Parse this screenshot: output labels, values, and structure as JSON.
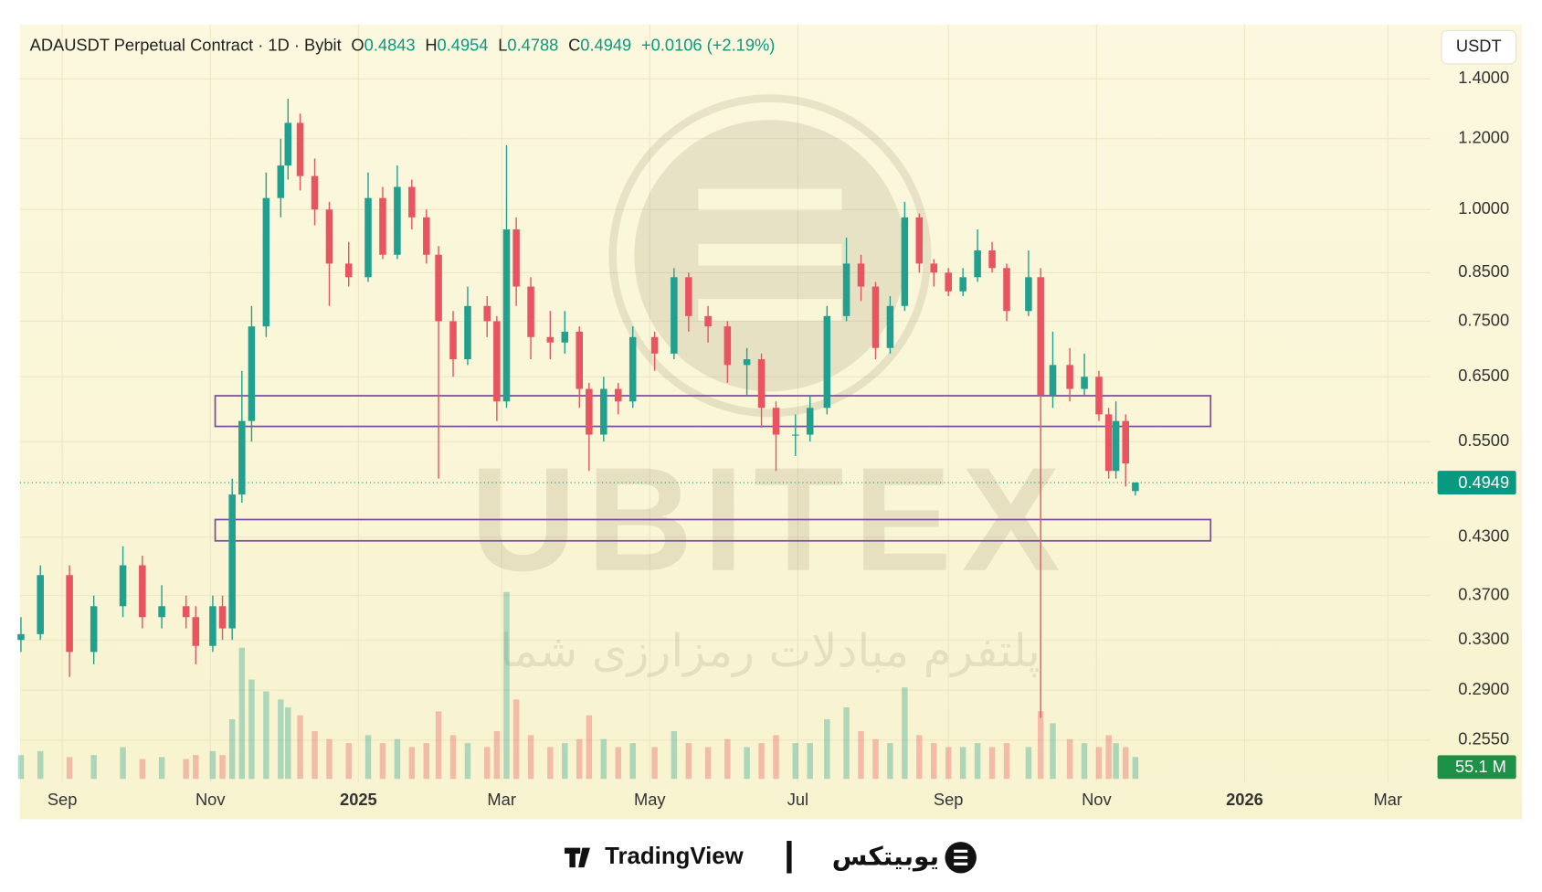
{
  "chart_data": {
    "type": "candlestick",
    "title": "ADAUSDT Perpetual Contract · 1D · Bybit",
    "ohlc_labels": [
      "O",
      "H",
      "L",
      "C"
    ],
    "change": "+0.0106 (+2.19%)",
    "currency": "USDT",
    "log": true,
    "grid": true,
    "up_color": "#22a08f",
    "down_color": "#e8545f",
    "zone_color": "#7a4ba3",
    "x": [
      -17,
      -9,
      3,
      13,
      25,
      33,
      41,
      51,
      55,
      62,
      66,
      70,
      74,
      78,
      84,
      90,
      93,
      98,
      104,
      110,
      118,
      126,
      132,
      138,
      144,
      150,
      155,
      161,
      167,
      175,
      179,
      183,
      187,
      193,
      201,
      207,
      213,
      217,
      223,
      229,
      235,
      244,
      252,
      258,
      266,
      274,
      282,
      288,
      294,
      302,
      308,
      315,
      323,
      329,
      335,
      341,
      347,
      353,
      359,
      365,
      371,
      377,
      383,
      389,
      398,
      403,
      408,
      415,
      421,
      427,
      431,
      434,
      438,
      442
    ],
    "open": [
      0.33,
      0.335,
      0.39,
      0.32,
      0.36,
      0.4,
      0.35,
      0.36,
      0.35,
      0.325,
      0.36,
      0.34,
      0.48,
      0.58,
      0.74,
      1.03,
      1.12,
      1.25,
      1.09,
      1.0,
      0.87,
      0.84,
      1.03,
      0.89,
      1.06,
      0.98,
      0.89,
      0.75,
      0.68,
      0.78,
      0.75,
      0.61,
      0.95,
      0.82,
      0.72,
      0.71,
      0.73,
      0.63,
      0.56,
      0.63,
      0.61,
      0.72,
      0.69,
      0.84,
      0.76,
      0.74,
      0.67,
      0.68,
      0.6,
      0.56,
      0.56,
      0.6,
      0.76,
      0.87,
      0.82,
      0.7,
      0.78,
      0.98,
      0.87,
      0.85,
      0.81,
      0.84,
      0.9,
      0.86,
      0.77,
      0.84,
      0.62,
      0.67,
      0.63,
      0.65,
      0.59,
      0.51,
      0.58,
      0.4843
    ],
    "high": [
      0.35,
      0.4,
      0.4,
      0.37,
      0.42,
      0.41,
      0.38,
      0.37,
      0.36,
      0.37,
      0.37,
      0.5,
      0.66,
      0.78,
      1.1,
      1.2,
      1.33,
      1.28,
      1.14,
      1.02,
      0.92,
      1.1,
      1.06,
      1.12,
      1.08,
      1.0,
      0.91,
      0.77,
      0.82,
      0.8,
      0.76,
      1.18,
      0.98,
      0.84,
      0.77,
      0.77,
      0.74,
      0.64,
      0.65,
      0.64,
      0.74,
      0.73,
      0.86,
      0.85,
      0.78,
      0.75,
      0.7,
      0.69,
      0.61,
      0.59,
      0.62,
      0.78,
      0.93,
      0.89,
      0.83,
      0.8,
      1.02,
      0.99,
      0.88,
      0.86,
      0.86,
      0.95,
      0.92,
      0.87,
      0.9,
      0.86,
      0.73,
      0.7,
      0.69,
      0.66,
      0.6,
      0.61,
      0.59,
      0.4954
    ],
    "low": [
      0.32,
      0.33,
      0.3,
      0.31,
      0.35,
      0.34,
      0.34,
      0.34,
      0.31,
      0.32,
      0.33,
      0.33,
      0.47,
      0.55,
      0.72,
      0.98,
      1.08,
      1.05,
      0.96,
      0.78,
      0.82,
      0.83,
      0.88,
      0.88,
      0.95,
      0.87,
      0.5,
      0.65,
      0.67,
      0.72,
      0.58,
      0.6,
      0.78,
      0.68,
      0.68,
      0.69,
      0.6,
      0.51,
      0.55,
      0.59,
      0.6,
      0.66,
      0.68,
      0.73,
      0.71,
      0.64,
      0.62,
      0.57,
      0.51,
      0.53,
      0.55,
      0.59,
      0.75,
      0.79,
      0.68,
      0.69,
      0.77,
      0.85,
      0.82,
      0.8,
      0.8,
      0.83,
      0.85,
      0.75,
      0.76,
      0.27,
      0.6,
      0.61,
      0.62,
      0.58,
      0.5,
      0.5,
      0.49,
      0.4788
    ],
    "close": [
      0.335,
      0.39,
      0.32,
      0.36,
      0.4,
      0.35,
      0.36,
      0.35,
      0.325,
      0.36,
      0.34,
      0.48,
      0.58,
      0.74,
      1.03,
      1.12,
      1.25,
      1.09,
      1.0,
      0.87,
      0.84,
      1.03,
      0.89,
      1.06,
      0.98,
      0.89,
      0.75,
      0.68,
      0.78,
      0.75,
      0.61,
      0.95,
      0.82,
      0.72,
      0.71,
      0.73,
      0.63,
      0.56,
      0.63,
      0.61,
      0.72,
      0.69,
      0.84,
      0.76,
      0.74,
      0.67,
      0.68,
      0.6,
      0.56,
      0.56,
      0.6,
      0.76,
      0.87,
      0.82,
      0.7,
      0.78,
      0.98,
      0.87,
      0.85,
      0.81,
      0.84,
      0.9,
      0.86,
      0.77,
      0.84,
      0.62,
      0.67,
      0.63,
      0.65,
      0.59,
      0.51,
      0.58,
      0.52,
      0.4949
    ],
    "volume": [
      60,
      70,
      55,
      60,
      80,
      50,
      55,
      50,
      60,
      70,
      60,
      150,
      330,
      250,
      220,
      200,
      180,
      160,
      120,
      100,
      90,
      110,
      90,
      100,
      80,
      90,
      170,
      110,
      90,
      80,
      120,
      470,
      200,
      110,
      80,
      90,
      100,
      160,
      100,
      80,
      90,
      80,
      120,
      90,
      80,
      100,
      80,
      90,
      110,
      90,
      90,
      150,
      180,
      120,
      100,
      90,
      230,
      110,
      90,
      80,
      80,
      90,
      80,
      90,
      80,
      170,
      140,
      100,
      90,
      80,
      110,
      90,
      80,
      55.1
    ],
    "volume_tag": "55.1 M",
    "zones": [
      {
        "x": [
          63,
          473
        ],
        "y": [
          0.572,
          0.619
        ]
      },
      {
        "x": [
          63,
          473
        ],
        "y": [
          0.426,
          0.45
        ]
      }
    ],
    "xlim": [
      -17.4,
      563.6
    ],
    "xticks": [
      {
        "value": 0,
        "label": "Sep"
      },
      {
        "value": 61,
        "label": "Nov"
      },
      {
        "value": 122,
        "label": "2025"
      },
      {
        "value": 181,
        "label": "Mar"
      },
      {
        "value": 242,
        "label": "May"
      },
      {
        "value": 303,
        "label": "Jul"
      },
      {
        "value": 365,
        "label": "Sep"
      },
      {
        "value": 426,
        "label": "Nov"
      },
      {
        "value": 487,
        "label": "2026"
      },
      {
        "value": 546,
        "label": "Mar"
      }
    ],
    "ylim": [
      0.229,
      1.61
    ],
    "yticks": [
      {
        "value": 1.4,
        "label": "1.4000"
      },
      {
        "value": 1.2,
        "label": "1.2000"
      },
      {
        "value": 1.0,
        "label": "1.0000"
      },
      {
        "value": 0.85,
        "label": "0.8500"
      },
      {
        "value": 0.75,
        "label": "0.7500"
      },
      {
        "value": 0.65,
        "label": "0.6500"
      },
      {
        "value": 0.55,
        "label": "0.5500"
      },
      {
        "value": 0.43,
        "label": "0.4300"
      },
      {
        "value": 0.37,
        "label": "0.3700"
      },
      {
        "value": 0.33,
        "label": "0.3300"
      },
      {
        "value": 0.29,
        "label": "0.2900"
      },
      {
        "value": 0.255,
        "label": "0.2550"
      }
    ]
  },
  "watermark": {
    "brand": "UBITEX",
    "slogan": "پلتفرم مبادلات رمزارزی شما"
  },
  "footer": {
    "left": "TradingView",
    "right": "یوبیتکس"
  }
}
